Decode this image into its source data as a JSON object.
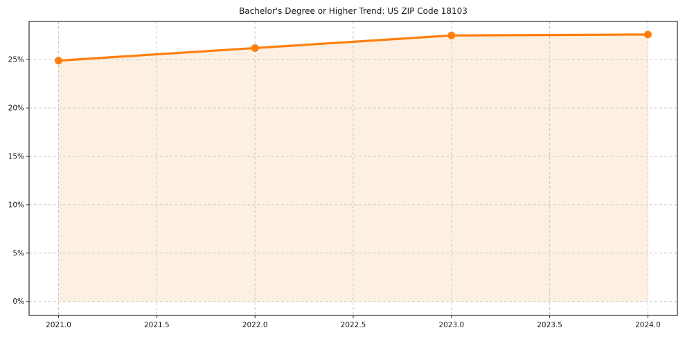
{
  "chart_data": {
    "type": "area",
    "title": "Bachelor's Degree or Higher Trend: US ZIP Code 18103",
    "x": [
      2021,
      2022,
      2023,
      2024
    ],
    "values": [
      24.9,
      26.2,
      27.5,
      27.6
    ],
    "xlabel": "",
    "ylabel": "",
    "xlim": [
      2020.85,
      2024.15
    ],
    "ylim": [
      -1.45,
      28.95
    ],
    "x_tick_values": [
      2021.0,
      2021.5,
      2022.0,
      2022.5,
      2023.0,
      2023.5,
      2024.0
    ],
    "x_tick_labels": [
      "2021.0",
      "2021.5",
      "2022.0",
      "2022.5",
      "2023.0",
      "2023.5",
      "2024.0"
    ],
    "y_tick_values": [
      0,
      5,
      10,
      15,
      20,
      25
    ],
    "y_tick_labels": [
      "0%",
      "5%",
      "10%",
      "15%",
      "20%",
      "25%"
    ],
    "grid": true,
    "grid_style": "dashed",
    "legend_position": "none",
    "marker": "circle",
    "colors": {
      "line": "#ff7f0e",
      "marker": "#ff7f0e",
      "fill": "#fdf0e2",
      "grid": "#c9c9c9",
      "axis": "#2b2b2b",
      "text": "#1a1a1a",
      "background": "#ffffff"
    }
  }
}
